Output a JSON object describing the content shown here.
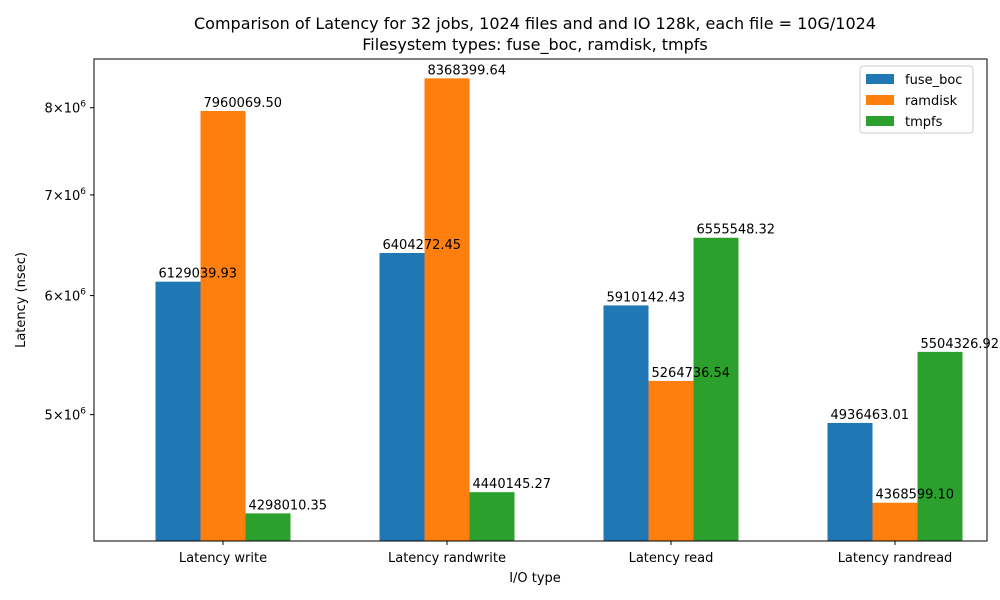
{
  "chart_data": {
    "type": "bar",
    "title": "Comparison of Latency for 32 jobs, 1024 files and  and IO 128k, each file = 10G/1024",
    "subtitle": "Filesystem types: fuse_boc, ramdisk, tmpfs",
    "xlabel": "I/O type",
    "ylabel": "Latency (nsec)",
    "yscale": "log",
    "ylim": [
      4120000,
      8620000
    ],
    "yticks": [
      {
        "value": 5000000,
        "mant": "5",
        "exp": "6"
      },
      {
        "value": 6000000,
        "mant": "6",
        "exp": "6"
      },
      {
        "value": 7000000,
        "mant": "7",
        "exp": "6"
      },
      {
        "value": 8000000,
        "mant": "8",
        "exp": "6"
      }
    ],
    "categories": [
      "Latency write",
      "Latency randwrite",
      "Latency read",
      "Latency randread"
    ],
    "series": [
      {
        "name": "fuse_boc",
        "color": "#1f77b4",
        "values": [
          6129039.93,
          6404272.45,
          5910142.43,
          4936463.01
        ],
        "labels": [
          "6129039.93",
          "6404272.45",
          "5910142.43",
          "4936463.01"
        ]
      },
      {
        "name": "ramdisk",
        "color": "#ff7f0e",
        "values": [
          7960069.5,
          8368399.64,
          5264736.54,
          4368599.1
        ],
        "labels": [
          "7960069.50",
          "8368399.64",
          "5264736.54",
          "4368599.10"
        ]
      },
      {
        "name": "tmpfs",
        "color": "#2ca02c",
        "values": [
          4298010.35,
          4440145.27,
          6555548.32,
          5504326.92
        ],
        "labels": [
          "4298010.35",
          "4440145.27",
          "6555548.32",
          "5504326.92"
        ]
      }
    ],
    "legend_position": "top-right",
    "grid": false
  }
}
